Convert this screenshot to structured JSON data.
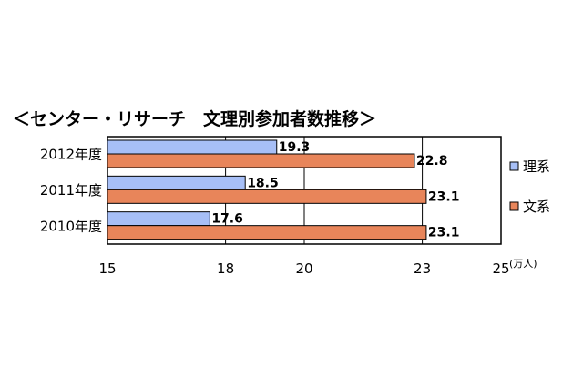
{
  "chart_data": {
    "type": "bar",
    "orientation": "horizontal",
    "title": "＜センター・リサーチ　文理別参加者数推移＞",
    "unit": "(万人)",
    "categories": [
      "2012年度",
      "2011年度",
      "2010年度"
    ],
    "series": [
      {
        "name": "理系",
        "values": [
          19.3,
          18.5,
          17.6
        ],
        "color": "#a7bff7"
      },
      {
        "name": "文系",
        "values": [
          22.8,
          23.1,
          23.1
        ],
        "color": "#e8855a"
      }
    ],
    "xlim": [
      15,
      25
    ],
    "ticks": [
      "15",
      "18",
      "20",
      "23",
      "25"
    ],
    "tick_values": [
      15,
      18,
      20,
      23,
      25
    ],
    "value_labels": {
      "理系": [
        "19.3",
        "18.5",
        "17.6"
      ],
      "文系": [
        "22.8",
        "23.1",
        "23.1"
      ]
    },
    "grid": true,
    "legend_position": "right"
  }
}
